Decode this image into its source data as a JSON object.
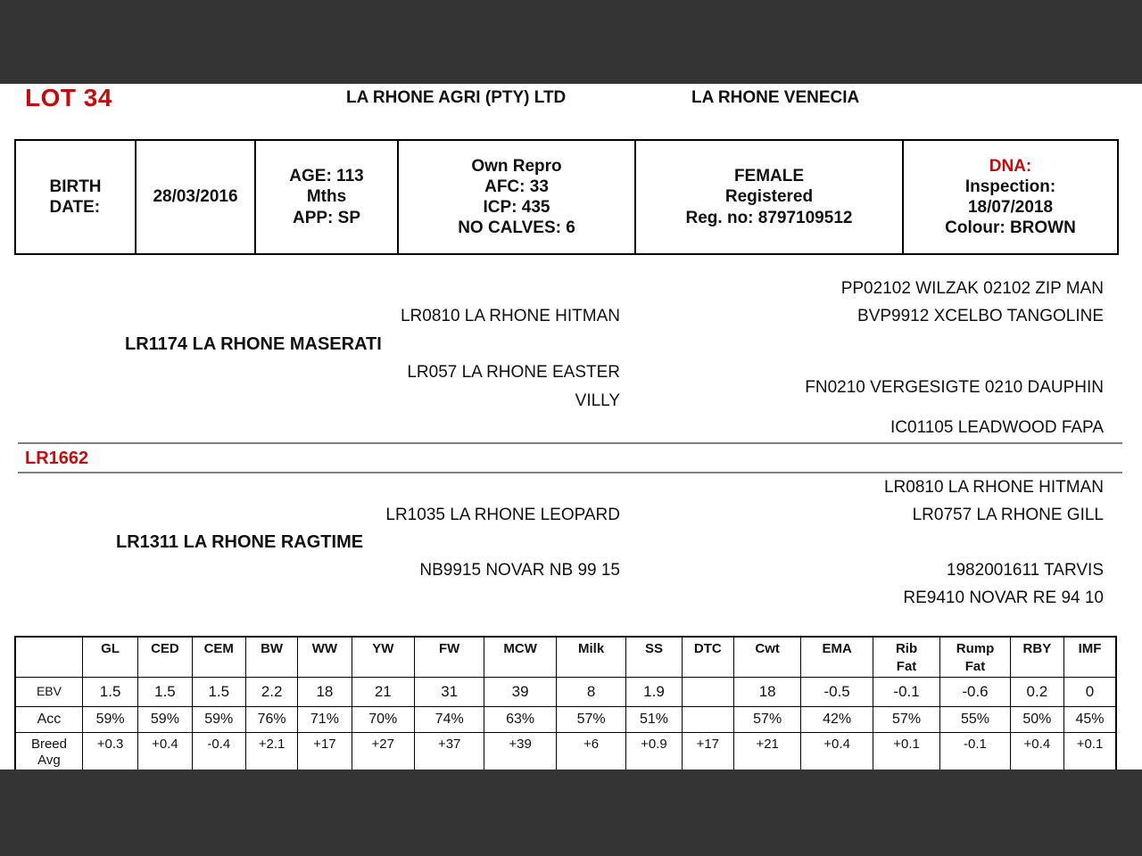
{
  "colors": {
    "accent_red": "#c00d0d",
    "bar_dark": "#333333",
    "divider_gray": "#7f7f7f"
  },
  "header": {
    "lot": "LOT 34",
    "company": "LA RHONE AGRI (PTY) LTD",
    "animal_name": "LA RHONE VENECIA"
  },
  "info": {
    "birth_label_lines": [
      "BIRTH",
      "DATE:"
    ],
    "birth_date": "28/03/2016",
    "age_lines": [
      "AGE: 113",
      "Mths",
      "APP: SP"
    ],
    "repro_lines": [
      "Own Repro",
      "AFC: 33",
      "ICP: 435",
      "NO CALVES: 6"
    ],
    "status_lines": [
      "FEMALE",
      "Registered",
      "Reg. no: 8797109512"
    ],
    "dna_label": "DNA:",
    "dna_lines": [
      "Inspection:",
      "18/07/2018",
      "Colour: BROWN"
    ]
  },
  "pedigree": {
    "subject_id": "LR1662",
    "sire": {
      "name": "LR1174 LA RHONE MASERATI",
      "sire": "LR0810 LA RHONE HITMAN",
      "dam_line1": "LR057 LA RHONE EASTER",
      "dam_line2": "VILLY",
      "sire_sire": "PP02102 WILZAK 02102 ZIP MAN",
      "sire_dam": "BVP9912 XCELBO TANGOLINE",
      "dam_sire": "FN0210 VERGESIGTE 0210 DAUPHIN",
      "dam_dam": "IC01105 LEADWOOD FAPA"
    },
    "dam": {
      "name": "LR1311 LA RHONE RAGTIME",
      "sire": "LR1035 LA RHONE LEOPARD",
      "dam": "NB9915 NOVAR NB 99 15",
      "sire_sire": "LR0810 LA RHONE HITMAN",
      "sire_dam": "LR0757 LA RHONE GILL",
      "dam_sire": "1982001611 TARVIS",
      "dam_dam": "RE9410 NOVAR RE 94 10"
    }
  },
  "ebv_table": {
    "columns": [
      "GL",
      "CED",
      "CEM",
      "BW",
      "WW",
      "YW",
      "FW",
      "MCW",
      "Milk",
      "SS",
      "DTC",
      "Cwt",
      "EMA",
      "Rib\nFat",
      "Rump\nFat",
      "RBY",
      "IMF"
    ],
    "rows": [
      {
        "label": "EBV",
        "values": [
          "1.5",
          "1.5",
          "1.5",
          "2.2",
          "18",
          "21",
          "31",
          "39",
          "8",
          "1.9",
          "",
          "18",
          "-0.5",
          "-0.1",
          "-0.6",
          "0.2",
          "0"
        ]
      },
      {
        "label": "Acc",
        "values": [
          "59%",
          "59%",
          "59%",
          "76%",
          "71%",
          "70%",
          "74%",
          "63%",
          "57%",
          "51%",
          "",
          "57%",
          "42%",
          "57%",
          "55%",
          "50%",
          "45%"
        ]
      },
      {
        "label": "Breed\nAvg",
        "values": [
          "+0.3",
          "+0.4",
          "-0.4",
          "+2.1",
          "+17",
          "+27",
          "+37",
          "+39",
          "+6",
          "+0.9",
          "+17",
          "+21",
          "+0.4",
          "+0.1",
          "-0.1",
          "+0.4",
          "+0.1"
        ]
      }
    ]
  }
}
